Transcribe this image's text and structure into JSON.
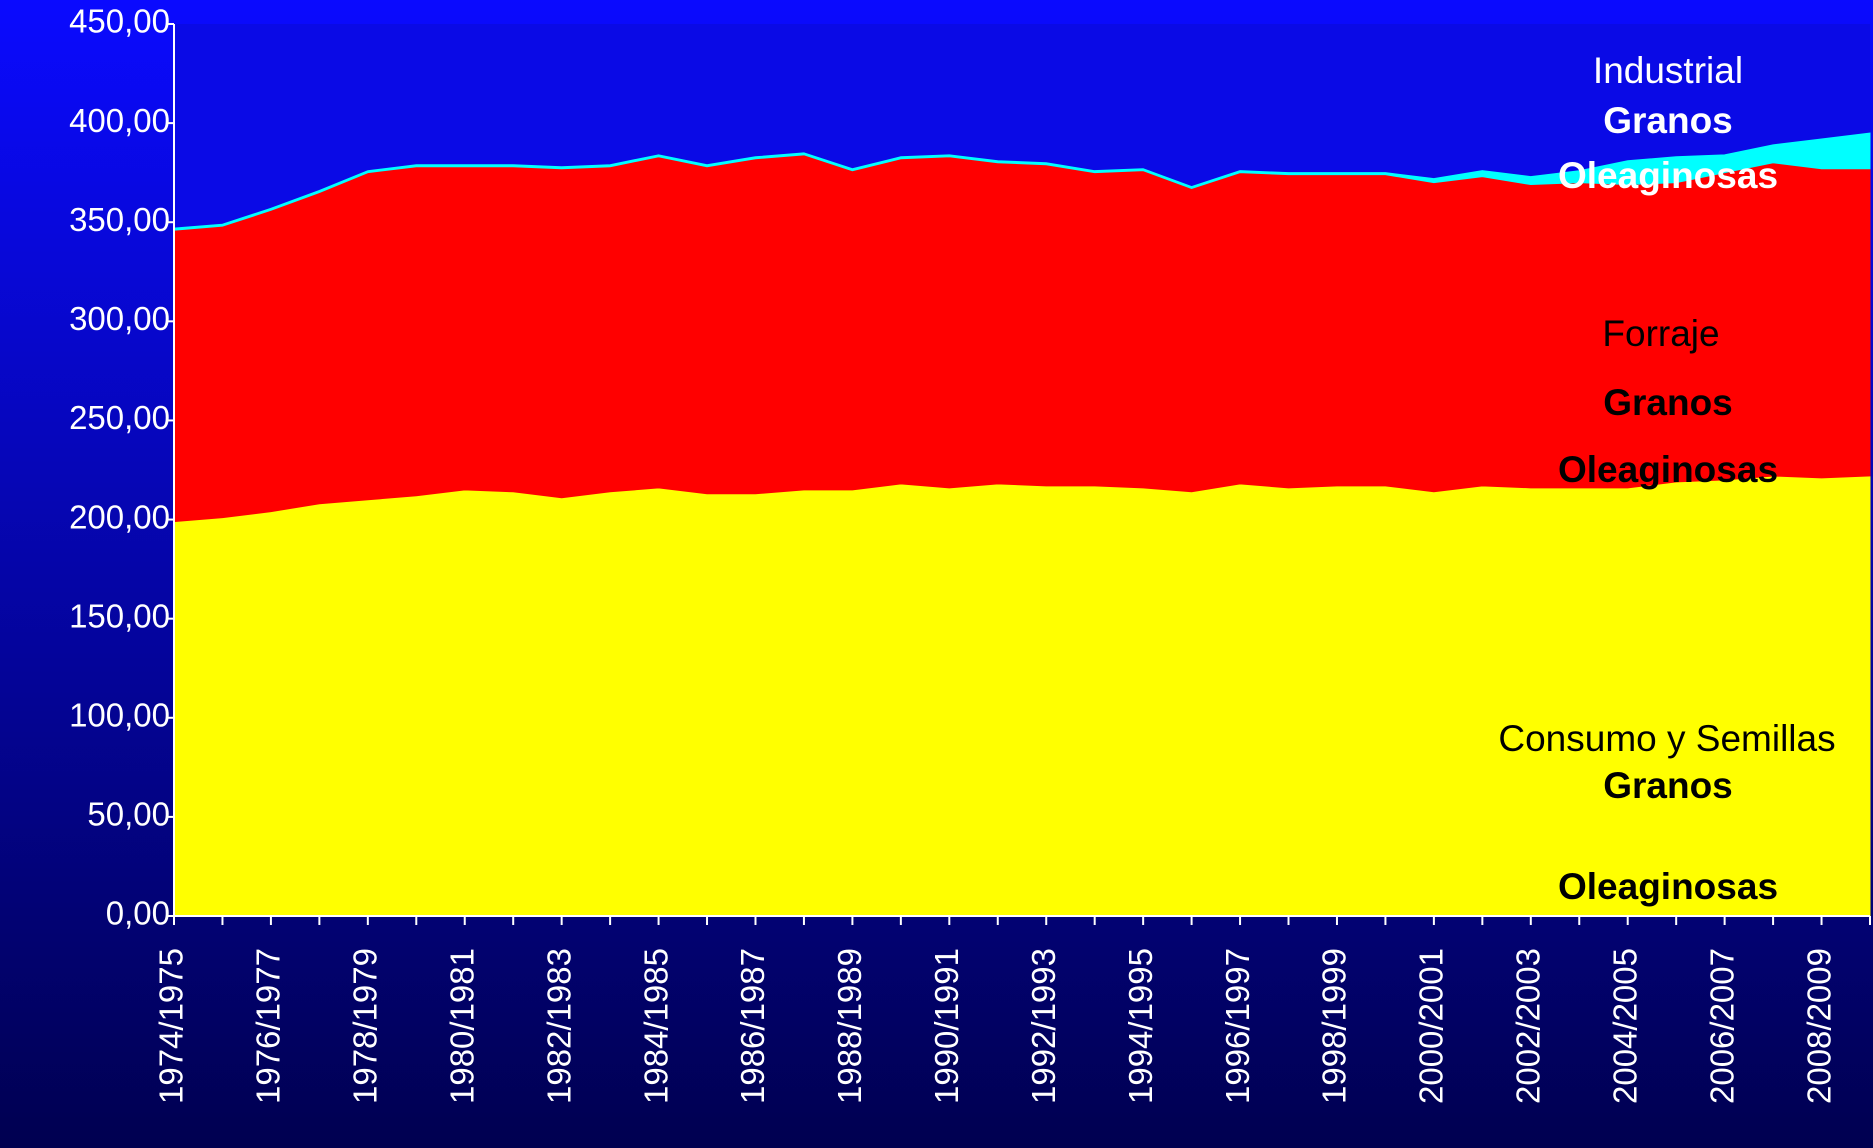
{
  "chart_data": {
    "type": "stacked_area",
    "categories": [
      "1974/1975",
      null,
      "1976/1977",
      null,
      "1978/1979",
      null,
      "1980/1981",
      null,
      "1982/1983",
      null,
      "1984/1985",
      null,
      "1986/1987",
      null,
      "1988/1989",
      null,
      "1990/1991",
      null,
      "1992/1993",
      null,
      "1994/1995",
      null,
      "1996/1997",
      null,
      "1998/1999",
      null,
      "2000/2001",
      null,
      "2002/2003",
      null,
      "2004/2005",
      null,
      "2006/2007",
      null,
      "2008/2009",
      null
    ],
    "series": [
      {
        "name": "Consumo y Semillas",
        "color": "#ffff00",
        "values": [
          199,
          201,
          204,
          208,
          210,
          212,
          215,
          214,
          211,
          214,
          216,
          213,
          213,
          215,
          215,
          218,
          216,
          218,
          217,
          217,
          216,
          214,
          218,
          216,
          217,
          217,
          214,
          217,
          216,
          216,
          216,
          219,
          220,
          222,
          221,
          222
        ]
      },
      {
        "name": "Forraje",
        "color": "#ff0000",
        "values": [
          147,
          147,
          152,
          157,
          165,
          166,
          163,
          164,
          166,
          164,
          167,
          165,
          169,
          169,
          161,
          164,
          167,
          162,
          162,
          158,
          160,
          153,
          157,
          158,
          157,
          157,
          156,
          156,
          153,
          154,
          153,
          151,
          155,
          158,
          156,
          155
        ]
      },
      {
        "name": "Industrial",
        "color": "#00ffff",
        "values": [
          1,
          1,
          1,
          1,
          1,
          1,
          1,
          1,
          1,
          1,
          1,
          1,
          1,
          1,
          1,
          1,
          1,
          1,
          1,
          1,
          1,
          1,
          1,
          1,
          1,
          1,
          2,
          3,
          4,
          6,
          12,
          13,
          9,
          9,
          15,
          18
        ]
      }
    ],
    "annotations": [
      "Granos",
      "Oleaginosas",
      "Granos",
      "Oleaginosas",
      "Granos",
      "Oleaginosas"
    ],
    "ylim": [
      0,
      450
    ],
    "yticks": [
      {
        "value": 0,
        "label": "0,00"
      },
      {
        "value": 50,
        "label": "50,00"
      },
      {
        "value": 100,
        "label": "100,00"
      },
      {
        "value": 150,
        "label": "150,00"
      },
      {
        "value": 200,
        "label": "200,00"
      },
      {
        "value": 250,
        "label": "250,00"
      },
      {
        "value": 300,
        "label": "300,00"
      },
      {
        "value": 350,
        "label": "350,00"
      },
      {
        "value": 400,
        "label": "400,00"
      },
      {
        "value": 450,
        "label": "450,00"
      }
    ]
  }
}
